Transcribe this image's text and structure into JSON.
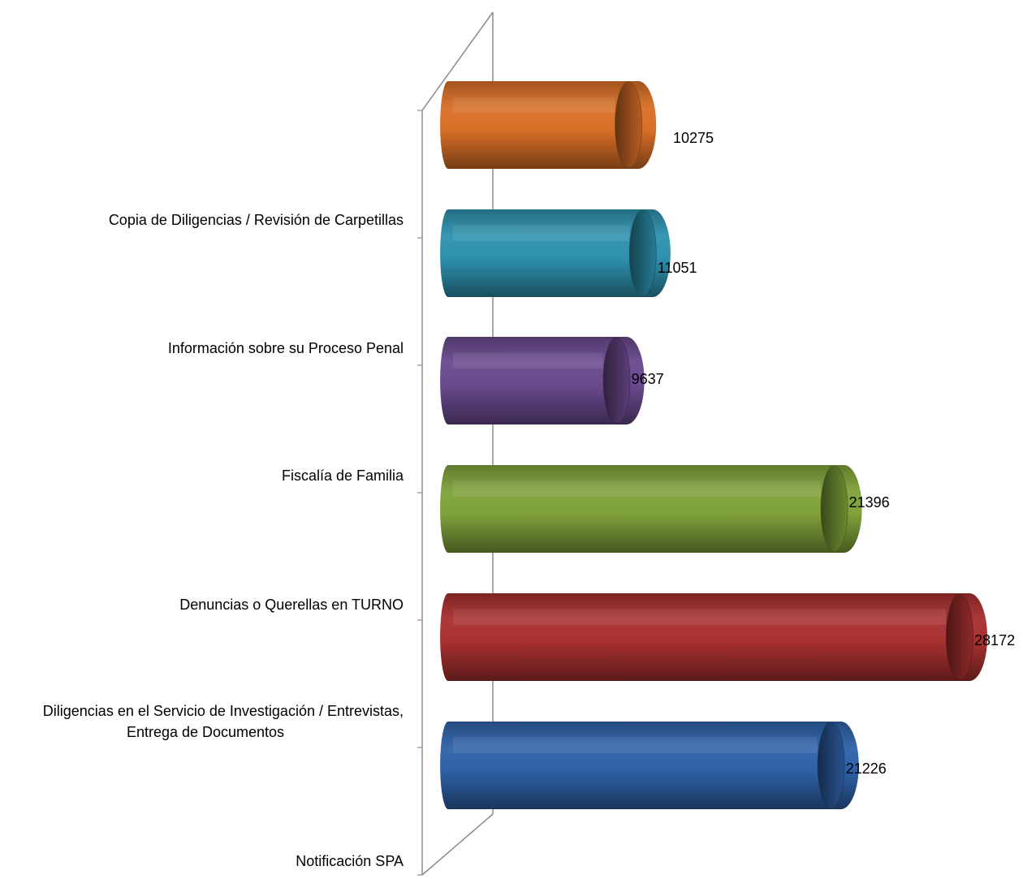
{
  "chart_data": {
    "type": "bar",
    "orientation": "horizontal",
    "style": "3d-cylinder",
    "categories": [
      "Notificación SPA",
      "Diligencias en el Servicio de Investigación / Entrevistas, Entrega de Documentos",
      "Denuncias o Querellas en TURNO",
      "Fiscalía de Familia",
      "Información sobre su Proceso Penal",
      "Copia de Diligencias / Revisión de Carpetillas"
    ],
    "category_lines": [
      [
        "Notificación SPA"
      ],
      [
        "Diligencias en el Servicio de Investigación / Entrevistas,",
        "Entrega de Documentos"
      ],
      [
        "Denuncias o Querellas en TURNO"
      ],
      [
        "Fiscalía de Familia"
      ],
      [
        "Información sobre su Proceso Penal"
      ],
      [
        "Copia de Diligencias / Revisión de Carpetillas"
      ]
    ],
    "bars": [
      {
        "value": 10275,
        "label": "10275",
        "color": "#D86F26"
      },
      {
        "value": 11051,
        "label": "11051",
        "color": "#2E92AE"
      },
      {
        "value": 9637,
        "label": "9637",
        "color": "#6A4A8E"
      },
      {
        "value": 21396,
        "label": "21396",
        "color": "#7FA23A"
      },
      {
        "value": 28172,
        "label": "28172",
        "color": "#A8302F"
      },
      {
        "value": 21226,
        "label": "21226",
        "color": "#2F62A8"
      }
    ],
    "grid": false,
    "legend": "none"
  }
}
